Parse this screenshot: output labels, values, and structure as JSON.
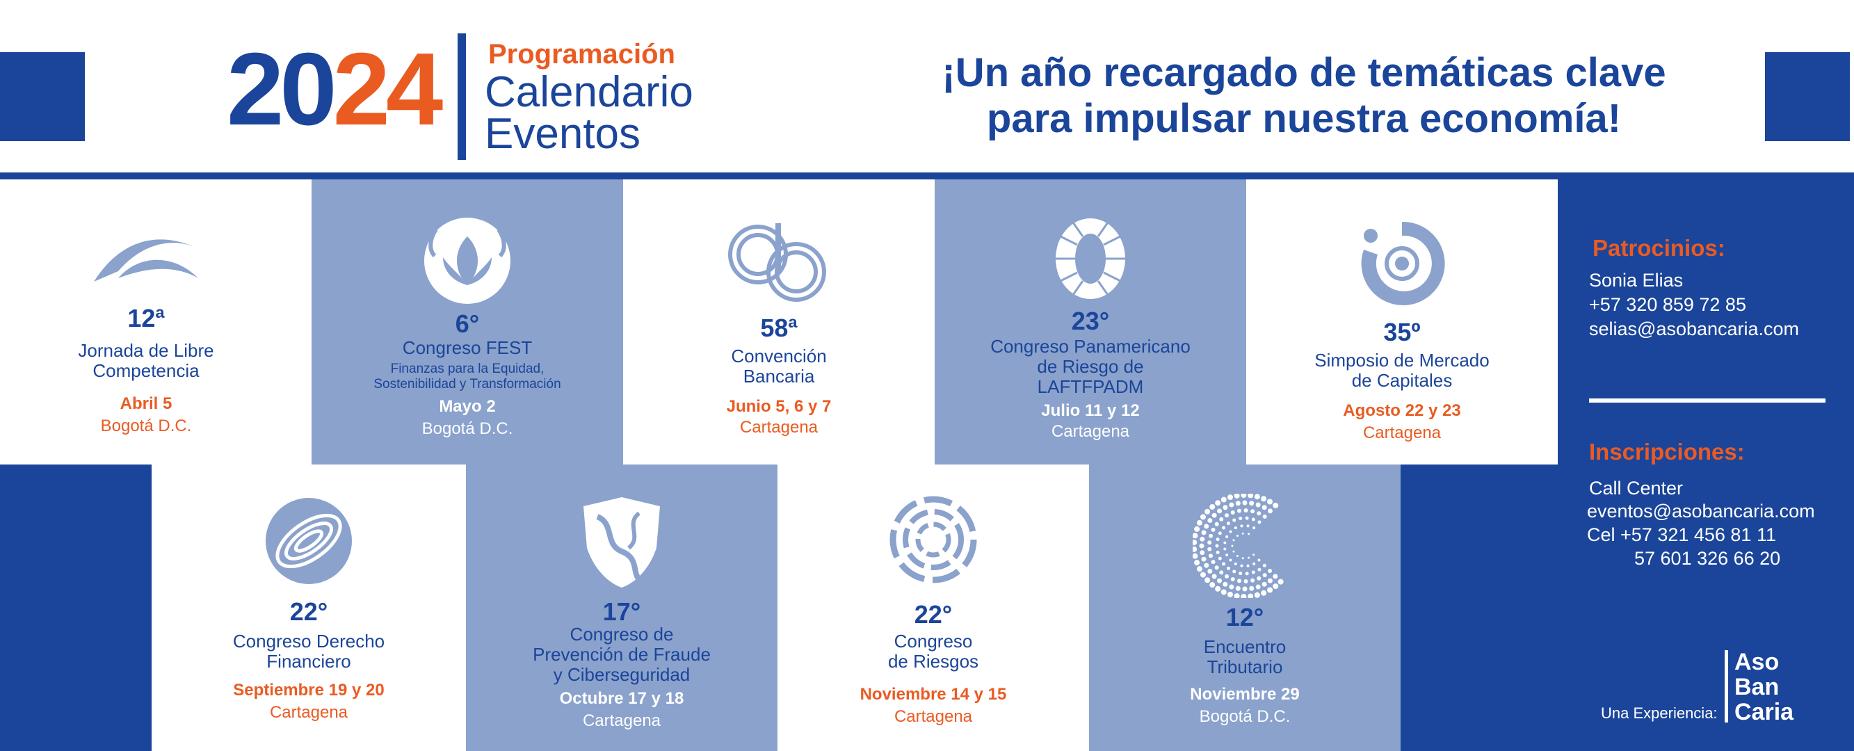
{
  "header": {
    "year_part1": "20",
    "year_part2": "24",
    "programacion": "Programación",
    "calendario": "Calendario",
    "eventos": "Eventos",
    "tagline_line1": "¡Un año recargado de temáticas clave",
    "tagline_line2": "para impulsar nuestra economía!"
  },
  "events_row1": [
    {
      "number": "12ª",
      "name_line1": "Jornada de Libre",
      "name_line2": "Competencia",
      "date": "Abril 5",
      "city": "Bogotá D.C."
    },
    {
      "number": "6°",
      "name_line1": "Congreso FEST",
      "subtitle_line1": "Finanzas para la Equidad,",
      "subtitle_line2": "Sostenibilidad y Transformación",
      "date": "Mayo 2",
      "city": "Bogotá D.C."
    },
    {
      "number": "58ª",
      "name_line1": "Convención",
      "name_line2": "Bancaria",
      "date": "Junio 5, 6 y 7",
      "city": "Cartagena"
    },
    {
      "number": "23°",
      "name_line1": "Congreso Panamericano",
      "name_line2": "de Riesgo de",
      "name_line3": "LAFTFPADM",
      "date": "Julio 11 y 12",
      "city": "Cartagena"
    },
    {
      "number": "35º",
      "name_line1": "Simposio de Mercado",
      "name_line2": "de Capitales",
      "date": "Agosto 22 y 23",
      "city": "Cartagena"
    }
  ],
  "events_row2": [
    {
      "number": "22°",
      "name_line1": "Congreso Derecho",
      "name_line2": "Financiero",
      "date": "Septiembre 19 y 20",
      "city": "Cartagena"
    },
    {
      "number": "17°",
      "name_line1": "Congreso de",
      "name_line2": "Prevención de Fraude",
      "name_line3": "y Ciberseguridad",
      "date": "Octubre 17 y 18",
      "city": "Cartagena"
    },
    {
      "number": "22°",
      "name_line1": "Congreso",
      "name_line2": "de Riesgos",
      "date": "Noviembre 14 y 15",
      "city": "Cartagena"
    },
    {
      "number": "12°",
      "name_line1": "Encuentro",
      "name_line2": "Tributario",
      "date": "Noviembre 29",
      "city": "Bogotá D.C."
    }
  ],
  "sidebar": {
    "patrocinios_title": "Patrocinios:",
    "patrocinios_name": "Sonia Elias",
    "patrocinios_phone": "+57 320 859 72 85",
    "patrocinios_email": "selias@asobancaria.com",
    "inscripciones_title": "Inscripciones:",
    "call_center": "Call Center",
    "inscripciones_email": "eventos@asobancaria.com",
    "cel_line1": "Cel +57 321 456 81 11",
    "cel_line2": "57 601 326 66 20",
    "experiencia": "Una Experiencia:",
    "logo_line1": "Aso",
    "logo_line2": "Ban",
    "logo_line3": "Caria"
  },
  "colors": {
    "brand_blue": "#1b459a",
    "light_blue": "#8aa2cc",
    "orange": "#ea5b22",
    "white": "#ffffff"
  }
}
